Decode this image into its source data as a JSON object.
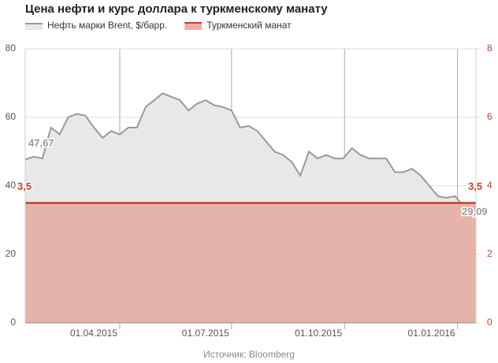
{
  "chart_data": {
    "type": "line",
    "title": "Цена нефти и курс доллара к туркменскому манату",
    "source": "Источник: Bloomberg",
    "x": [
      "14.01.2015",
      "21.01.2015",
      "28.01.2015",
      "04.02.2015",
      "11.02.2015",
      "18.02.2015",
      "25.02.2015",
      "04.03.2015",
      "11.03.2015",
      "18.03.2015",
      "25.03.2015",
      "01.04.2015",
      "08.04.2015",
      "15.04.2015",
      "22.04.2015",
      "29.04.2015",
      "06.05.2015",
      "13.05.2015",
      "20.05.2015",
      "27.05.2015",
      "03.06.2015",
      "10.06.2015",
      "17.06.2015",
      "24.06.2015",
      "01.07.2015",
      "08.07.2015",
      "15.07.2015",
      "22.07.2015",
      "29.07.2015",
      "05.08.2015",
      "12.08.2015",
      "19.08.2015",
      "26.08.2015",
      "02.09.2015",
      "09.09.2015",
      "16.09.2015",
      "23.09.2015",
      "30.09.2015",
      "07.10.2015",
      "14.10.2015",
      "21.10.2015",
      "28.10.2015",
      "04.11.2015",
      "11.11.2015",
      "18.11.2015",
      "25.11.2015",
      "02.12.2015",
      "09.12.2015",
      "16.12.2015",
      "23.12.2015",
      "30.12.2015",
      "06.01.2016",
      "13.01.2016",
      "16.01.2016"
    ],
    "series": [
      {
        "name": "Нефть марки Brent, $/барр.",
        "color": "#999999",
        "fill": "#e8e8e8",
        "values": [
          47.67,
          48.5,
          48,
          57,
          55,
          60,
          61,
          60.5,
          57,
          54,
          56,
          55,
          57,
          57,
          63,
          65,
          67,
          66,
          65,
          62,
          64,
          65,
          63.5,
          63,
          62,
          57,
          57.5,
          56,
          53,
          50,
          49,
          47,
          43,
          50,
          48,
          49,
          48,
          48,
          51,
          49,
          48,
          48,
          48,
          44,
          44,
          45,
          43,
          40,
          37,
          36.5,
          37,
          34,
          31,
          29.09
        ],
        "value_labels": [
          "47,67",
          null,
          null,
          null,
          null,
          null,
          null,
          null,
          null,
          null,
          null,
          null,
          null,
          null,
          null,
          null,
          null,
          null,
          null,
          null,
          null,
          null,
          null,
          null,
          null,
          null,
          null,
          null,
          null,
          null,
          null,
          null,
          null,
          null,
          null,
          null,
          null,
          null,
          null,
          null,
          null,
          null,
          null,
          null,
          null,
          null,
          null,
          null,
          null,
          null,
          null,
          null,
          null,
          "29,09"
        ]
      },
      {
        "name": "Туркменский манат",
        "color": "#c8412a",
        "fill": "#e5b3aa",
        "axis": "y2",
        "x": [
          "14.01.2015",
          "16.01.2016"
        ],
        "values": [
          3.5,
          3.5
        ],
        "value_labels": [
          "3,5",
          "3,5"
        ]
      }
    ],
    "xlim": [
      "14.01.2015",
      "16.01.2016"
    ],
    "xticks": [
      "01.04.2015",
      "01.07.2015",
      "01.10.2015",
      "01.01.2016"
    ],
    "ylim": [
      0,
      80
    ],
    "yticks": [
      0,
      20,
      40,
      60,
      80
    ],
    "y2lim": [
      0,
      8
    ],
    "y2ticks": [
      0,
      2,
      4,
      6,
      8
    ],
    "y2color": "#c8412a",
    "grid": true
  }
}
